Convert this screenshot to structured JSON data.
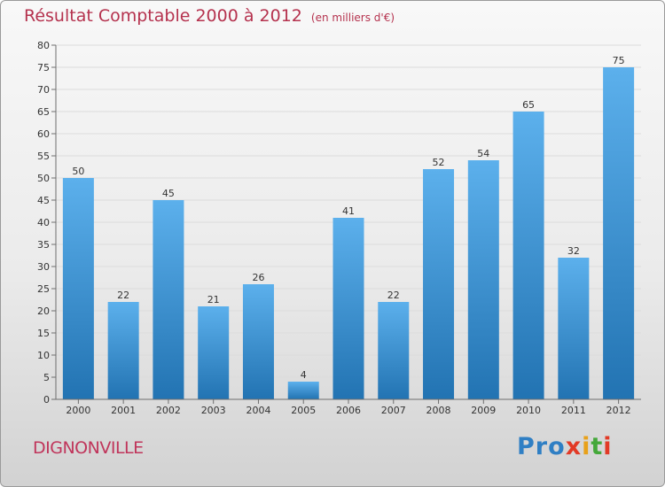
{
  "header": {
    "title": "Résultat Comptable 2000 à 2012",
    "subtitle": "(en milliers d'€)"
  },
  "footer": {
    "place": "DIGNONVILLE",
    "logo_letters": [
      "P",
      "r",
      "o",
      "x",
      "i",
      "t",
      "i"
    ],
    "logo_colors": [
      "#2f7fc4",
      "#2f7fc4",
      "#2f7fc4",
      "#e23a26",
      "#e8a11a",
      "#44a83a",
      "#e23a26"
    ]
  },
  "colors": {
    "title": "#b5324e",
    "bar_top": "#5cb0ec",
    "bar_bottom": "#2273b2",
    "grid": "#dcdcdc",
    "axis": "#6e6e6e",
    "text": "#333333"
  },
  "chart_data": {
    "type": "bar",
    "title": "Résultat Comptable 2000 à 2012",
    "subtitle": "(en milliers d'€)",
    "xlabel": "",
    "ylabel": "",
    "categories": [
      "2000",
      "2001",
      "2002",
      "2003",
      "2004",
      "2005",
      "2006",
      "2007",
      "2008",
      "2009",
      "2010",
      "2011",
      "2012"
    ],
    "values": [
      50,
      22,
      45,
      21,
      26,
      4,
      41,
      22,
      52,
      54,
      65,
      32,
      75
    ],
    "ylim": [
      0,
      80
    ],
    "yticks": [
      0,
      5,
      10,
      15,
      20,
      25,
      30,
      35,
      40,
      45,
      50,
      55,
      60,
      65,
      70,
      75,
      80
    ],
    "grid": true,
    "legend": "none"
  }
}
